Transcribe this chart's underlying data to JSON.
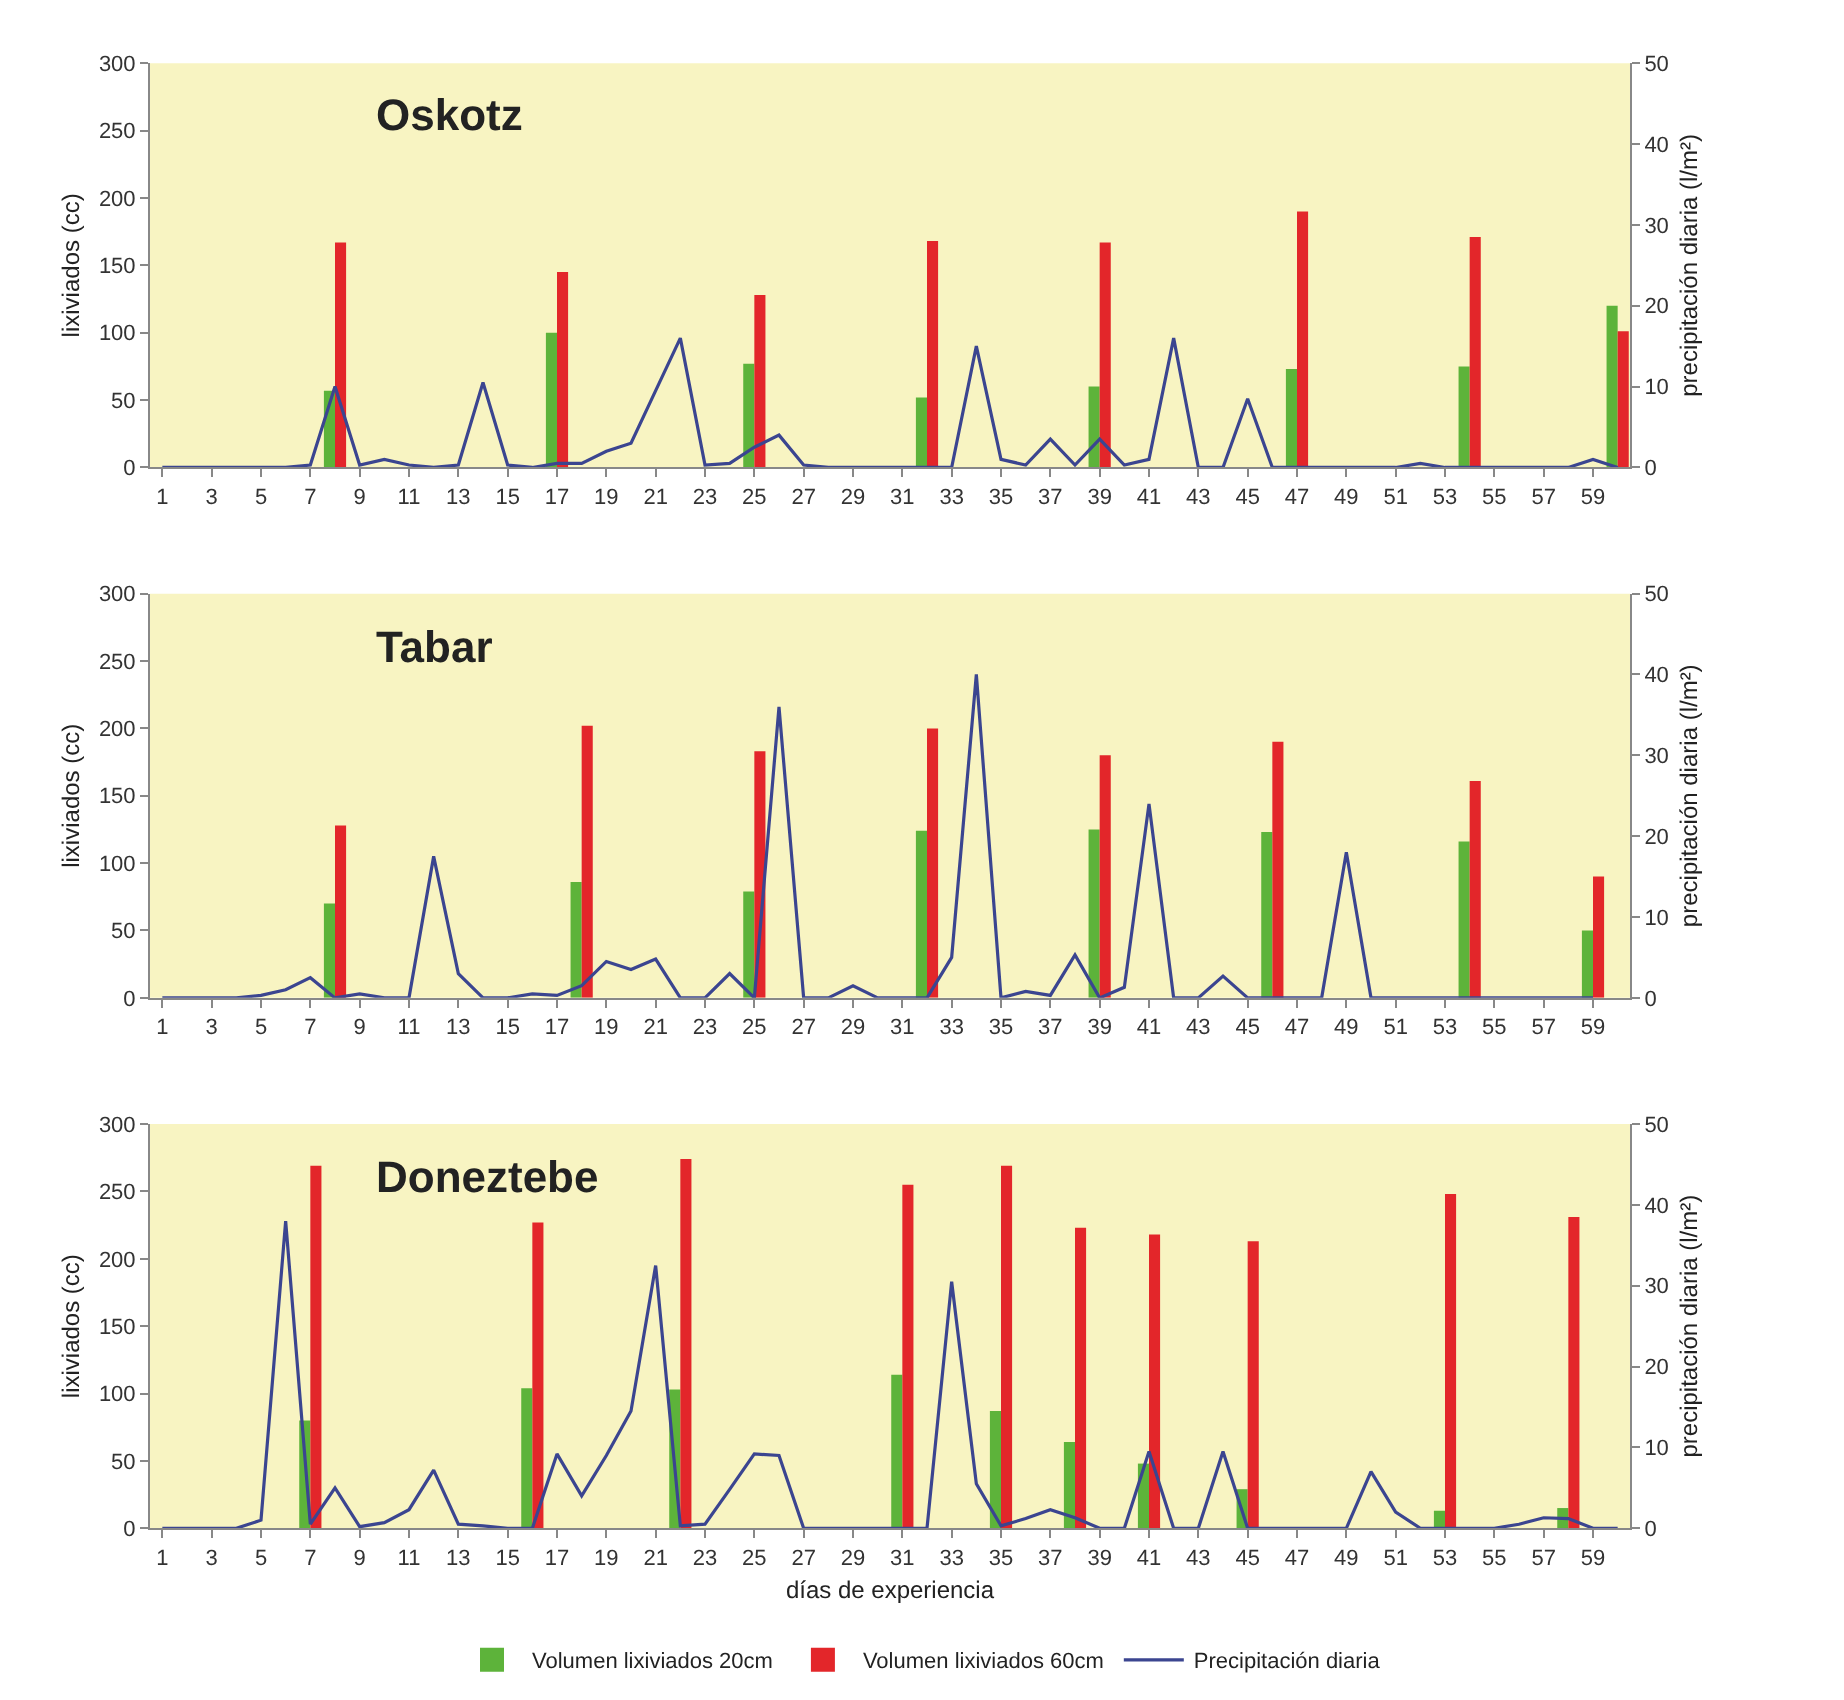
{
  "chart_data": [
    {
      "type": "bar",
      "title": "Oskotz",
      "ylabel": "lixiviados (cc)",
      "y2label": "precipitación diaria (l/m²)",
      "xlim": [
        0.5,
        60.5
      ],
      "xticks": [
        1,
        3,
        5,
        7,
        9,
        11,
        13,
        15,
        17,
        19,
        21,
        23,
        25,
        27,
        29,
        31,
        33,
        35,
        37,
        39,
        41,
        43,
        45,
        47,
        49,
        51,
        53,
        55,
        57,
        59
      ],
      "ylim": [
        0,
        300
      ],
      "yticks": [
        0,
        50,
        100,
        150,
        200,
        250,
        300
      ],
      "y2lim": [
        0,
        50
      ],
      "y2ticks": [
        0,
        10,
        20,
        30,
        40,
        50
      ],
      "grid": false,
      "legend": false,
      "series": [
        {
          "color": "#5db33a",
          "x": [
            8,
            17,
            25,
            32,
            39,
            47,
            54,
            60
          ],
          "values": [
            57,
            100,
            77,
            52,
            60,
            73,
            75,
            120
          ]
        },
        {
          "color": "#e3262a",
          "x": [
            8,
            17,
            25,
            32,
            39,
            47,
            54,
            60
          ],
          "values": [
            167,
            145,
            128,
            168,
            167,
            190,
            171,
            101
          ]
        },
        {
          "type": "line",
          "axis": "y2",
          "color": "#3b4590",
          "x": [
            1,
            2,
            3,
            4,
            5,
            6,
            7,
            8,
            9,
            10,
            11,
            12,
            13,
            14,
            15,
            16,
            17,
            18,
            19,
            20,
            21,
            22,
            23,
            24,
            25,
            26,
            27,
            28,
            29,
            30,
            31,
            32,
            33,
            34,
            35,
            36,
            37,
            38,
            39,
            40,
            41,
            42,
            43,
            44,
            45,
            46,
            47,
            48,
            49,
            50,
            51,
            52,
            53,
            54,
            55,
            56,
            57,
            58,
            59,
            60
          ],
          "values": [
            0,
            0,
            0,
            0,
            0,
            0,
            0.3,
            10,
            0.3,
            1,
            0.3,
            0,
            0.3,
            10.5,
            0.3,
            0,
            0.5,
            0.5,
            2,
            3,
            9.5,
            16,
            0.3,
            0.5,
            2.5,
            4,
            0.3,
            0,
            0,
            0,
            0,
            0,
            0,
            15,
            1,
            0.3,
            3.5,
            0.3,
            3.5,
            0.3,
            1,
            16,
            0,
            0,
            8.5,
            0,
            0,
            0,
            0,
            0,
            0,
            0.5,
            0,
            0,
            0,
            0,
            0,
            0,
            1,
            0
          ]
        }
      ]
    },
    {
      "type": "bar",
      "title": "Tabar",
      "ylabel": "lixiviados (cc)",
      "y2label": "precipitación diaria (l/m²)",
      "xlim": [
        0.5,
        60.5
      ],
      "xticks": [
        1,
        3,
        5,
        7,
        9,
        11,
        13,
        15,
        17,
        19,
        21,
        23,
        25,
        27,
        29,
        31,
        33,
        35,
        37,
        39,
        41,
        43,
        45,
        47,
        49,
        51,
        53,
        55,
        57,
        59
      ],
      "ylim": [
        0,
        300
      ],
      "yticks": [
        0,
        50,
        100,
        150,
        200,
        250,
        300
      ],
      "y2lim": [
        0,
        50
      ],
      "y2ticks": [
        0,
        10,
        20,
        30,
        40,
        50
      ],
      "grid": false,
      "legend": false,
      "series": [
        {
          "color": "#5db33a",
          "x": [
            8,
            18,
            25,
            32,
            39,
            46,
            54,
            59
          ],
          "values": [
            70,
            86,
            79,
            124,
            125,
            123,
            116,
            50
          ]
        },
        {
          "color": "#e3262a",
          "x": [
            8,
            18,
            25,
            32,
            39,
            46,
            54,
            59
          ],
          "values": [
            128,
            202,
            183,
            200,
            180,
            190,
            161,
            90
          ]
        },
        {
          "type": "line",
          "axis": "y2",
          "color": "#3b4590",
          "x": [
            1,
            2,
            3,
            4,
            5,
            6,
            7,
            8,
            9,
            10,
            11,
            12,
            13,
            14,
            15,
            16,
            17,
            18,
            19,
            20,
            21,
            22,
            23,
            24,
            25,
            26,
            27,
            28,
            29,
            30,
            31,
            32,
            33,
            34,
            35,
            36,
            37,
            38,
            39,
            40,
            41,
            42,
            43,
            44,
            45,
            46,
            47,
            48,
            49,
            50,
            51,
            52,
            53,
            54,
            55,
            56,
            57,
            58,
            59
          ],
          "values": [
            0,
            0,
            0,
            0,
            0.3,
            1,
            2.5,
            0,
            0.5,
            0,
            0,
            17.5,
            3,
            0,
            0,
            0.5,
            0.3,
            1.5,
            4.5,
            3.5,
            4.8,
            0,
            0,
            3,
            0,
            36,
            0,
            0,
            1.5,
            0,
            0,
            0,
            5,
            40,
            0,
            0.8,
            0.3,
            5.3,
            0,
            1.3,
            24,
            0,
            0,
            2.7,
            0,
            0,
            0,
            0,
            18,
            0,
            0,
            0,
            0,
            0,
            0,
            0,
            0,
            0,
            0
          ]
        }
      ]
    },
    {
      "type": "bar",
      "title": "Doneztebe",
      "xlabel": "días de experiencia",
      "ylabel": "lixiviados (cc)",
      "y2label": "precipitación diaria (l/m²)",
      "xlim": [
        0.5,
        60.5
      ],
      "xticks": [
        1,
        3,
        5,
        7,
        9,
        11,
        13,
        15,
        17,
        19,
        21,
        23,
        25,
        27,
        29,
        31,
        33,
        35,
        37,
        39,
        41,
        43,
        45,
        47,
        49,
        51,
        53,
        55,
        57,
        59
      ],
      "ylim": [
        0,
        300
      ],
      "yticks": [
        0,
        50,
        100,
        150,
        200,
        250,
        300
      ],
      "y2lim": [
        0,
        50
      ],
      "y2ticks": [
        0,
        10,
        20,
        30,
        40,
        50
      ],
      "grid": false,
      "legend": "bottom",
      "series": [
        {
          "name": "Volumen lixiviados 20cm",
          "color": "#5db33a",
          "x": [
            7,
            16,
            22,
            31,
            35,
            38,
            41,
            45,
            53,
            58
          ],
          "values": [
            80,
            104,
            103,
            114,
            87,
            64,
            48,
            29,
            13,
            15
          ]
        },
        {
          "name": "Volumen lixiviados 60cm",
          "color": "#e3262a",
          "x": [
            7,
            16,
            22,
            31,
            35,
            38,
            41,
            45,
            53,
            58
          ],
          "values": [
            269,
            227,
            274,
            255,
            269,
            223,
            218,
            213,
            248,
            231
          ]
        },
        {
          "type": "line",
          "axis": "y2",
          "name": "Precipitación diaria",
          "color": "#3b4590",
          "x": [
            1,
            2,
            3,
            4,
            5,
            6,
            7,
            8,
            9,
            10,
            11,
            12,
            13,
            14,
            15,
            16,
            17,
            18,
            19,
            20,
            21,
            22,
            23,
            24,
            25,
            26,
            27,
            28,
            29,
            30,
            31,
            32,
            33,
            34,
            35,
            36,
            37,
            38,
            39,
            40,
            41,
            42,
            43,
            44,
            45,
            46,
            47,
            48,
            49,
            50,
            51,
            52,
            53,
            54,
            55,
            56,
            57,
            58,
            59,
            60
          ],
          "values": [
            0,
            0,
            0,
            0,
            1,
            38,
            0.5,
            5,
            0.2,
            0.7,
            2.3,
            7.2,
            0.5,
            0.3,
            0,
            0,
            9.2,
            4,
            9,
            14.5,
            32.5,
            0.3,
            0.5,
            4.8,
            9.2,
            9,
            0,
            0,
            0,
            0,
            0,
            0,
            30.5,
            5.5,
            0.3,
            1.2,
            2.3,
            1.3,
            0,
            0,
            9.5,
            0,
            0,
            9.5,
            0,
            0,
            0,
            0,
            0,
            7,
            2,
            0,
            0,
            0,
            0,
            0.5,
            1.3,
            1.2,
            0,
            0
          ]
        }
      ]
    }
  ]
}
